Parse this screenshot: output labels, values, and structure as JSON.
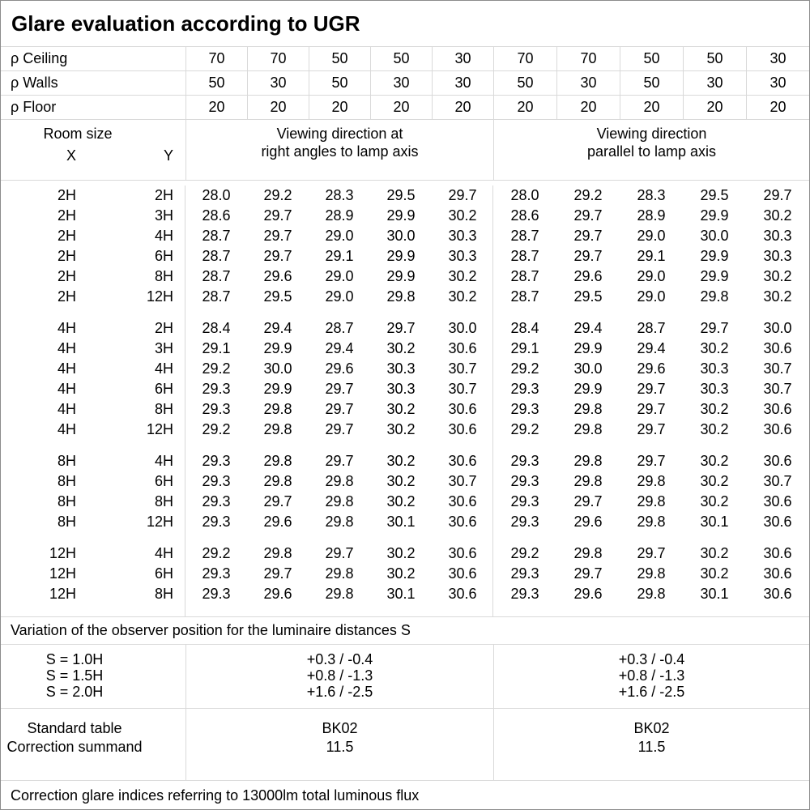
{
  "title": "Glare evaluation according to UGR",
  "reflectance_rows": [
    {
      "label": "ρ Ceiling",
      "values": [
        "70",
        "70",
        "50",
        "50",
        "30",
        "70",
        "70",
        "50",
        "50",
        "30"
      ]
    },
    {
      "label": "ρ Walls",
      "values": [
        "50",
        "30",
        "50",
        "30",
        "30",
        "50",
        "30",
        "50",
        "30",
        "30"
      ]
    },
    {
      "label": "ρ Floor",
      "values": [
        "20",
        "20",
        "20",
        "20",
        "20",
        "20",
        "20",
        "20",
        "20",
        "20"
      ]
    }
  ],
  "room_size_header": {
    "title": "Room size",
    "x_label": "X",
    "y_label": "Y"
  },
  "group_headers": [
    {
      "line1": "Viewing direction at",
      "line2": "right angles to lamp axis"
    },
    {
      "line1": "Viewing direction",
      "line2": "parallel to lamp axis"
    }
  ],
  "ugr_blocks": [
    {
      "rows": [
        {
          "x": "2H",
          "y": "2H",
          "right_angles": [
            "28.0",
            "29.2",
            "28.3",
            "29.5",
            "29.7"
          ],
          "parallel": [
            "28.0",
            "29.2",
            "28.3",
            "29.5",
            "29.7"
          ]
        },
        {
          "x": "2H",
          "y": "3H",
          "right_angles": [
            "28.6",
            "29.7",
            "28.9",
            "29.9",
            "30.2"
          ],
          "parallel": [
            "28.6",
            "29.7",
            "28.9",
            "29.9",
            "30.2"
          ]
        },
        {
          "x": "2H",
          "y": "4H",
          "right_angles": [
            "28.7",
            "29.7",
            "29.0",
            "30.0",
            "30.3"
          ],
          "parallel": [
            "28.7",
            "29.7",
            "29.0",
            "30.0",
            "30.3"
          ]
        },
        {
          "x": "2H",
          "y": "6H",
          "right_angles": [
            "28.7",
            "29.7",
            "29.1",
            "29.9",
            "30.3"
          ],
          "parallel": [
            "28.7",
            "29.7",
            "29.1",
            "29.9",
            "30.3"
          ]
        },
        {
          "x": "2H",
          "y": "8H",
          "right_angles": [
            "28.7",
            "29.6",
            "29.0",
            "29.9",
            "30.2"
          ],
          "parallel": [
            "28.7",
            "29.6",
            "29.0",
            "29.9",
            "30.2"
          ]
        },
        {
          "x": "2H",
          "y": "12H",
          "right_angles": [
            "28.7",
            "29.5",
            "29.0",
            "29.8",
            "30.2"
          ],
          "parallel": [
            "28.7",
            "29.5",
            "29.0",
            "29.8",
            "30.2"
          ]
        }
      ]
    },
    {
      "rows": [
        {
          "x": "4H",
          "y": "2H",
          "right_angles": [
            "28.4",
            "29.4",
            "28.7",
            "29.7",
            "30.0"
          ],
          "parallel": [
            "28.4",
            "29.4",
            "28.7",
            "29.7",
            "30.0"
          ]
        },
        {
          "x": "4H",
          "y": "3H",
          "right_angles": [
            "29.1",
            "29.9",
            "29.4",
            "30.2",
            "30.6"
          ],
          "parallel": [
            "29.1",
            "29.9",
            "29.4",
            "30.2",
            "30.6"
          ]
        },
        {
          "x": "4H",
          "y": "4H",
          "right_angles": [
            "29.2",
            "30.0",
            "29.6",
            "30.3",
            "30.7"
          ],
          "parallel": [
            "29.2",
            "30.0",
            "29.6",
            "30.3",
            "30.7"
          ]
        },
        {
          "x": "4H",
          "y": "6H",
          "right_angles": [
            "29.3",
            "29.9",
            "29.7",
            "30.3",
            "30.7"
          ],
          "parallel": [
            "29.3",
            "29.9",
            "29.7",
            "30.3",
            "30.7"
          ]
        },
        {
          "x": "4H",
          "y": "8H",
          "right_angles": [
            "29.3",
            "29.8",
            "29.7",
            "30.2",
            "30.6"
          ],
          "parallel": [
            "29.3",
            "29.8",
            "29.7",
            "30.2",
            "30.6"
          ]
        },
        {
          "x": "4H",
          "y": "12H",
          "right_angles": [
            "29.2",
            "29.8",
            "29.7",
            "30.2",
            "30.6"
          ],
          "parallel": [
            "29.2",
            "29.8",
            "29.7",
            "30.2",
            "30.6"
          ]
        }
      ]
    },
    {
      "rows": [
        {
          "x": "8H",
          "y": "4H",
          "right_angles": [
            "29.3",
            "29.8",
            "29.7",
            "30.2",
            "30.6"
          ],
          "parallel": [
            "29.3",
            "29.8",
            "29.7",
            "30.2",
            "30.6"
          ]
        },
        {
          "x": "8H",
          "y": "6H",
          "right_angles": [
            "29.3",
            "29.8",
            "29.8",
            "30.2",
            "30.7"
          ],
          "parallel": [
            "29.3",
            "29.8",
            "29.8",
            "30.2",
            "30.7"
          ]
        },
        {
          "x": "8H",
          "y": "8H",
          "right_angles": [
            "29.3",
            "29.7",
            "29.8",
            "30.2",
            "30.6"
          ],
          "parallel": [
            "29.3",
            "29.7",
            "29.8",
            "30.2",
            "30.6"
          ]
        },
        {
          "x": "8H",
          "y": "12H",
          "right_angles": [
            "29.3",
            "29.6",
            "29.8",
            "30.1",
            "30.6"
          ],
          "parallel": [
            "29.3",
            "29.6",
            "29.8",
            "30.1",
            "30.6"
          ]
        }
      ]
    },
    {
      "rows": [
        {
          "x": "12H",
          "y": "4H",
          "right_angles": [
            "29.2",
            "29.8",
            "29.7",
            "30.2",
            "30.6"
          ],
          "parallel": [
            "29.2",
            "29.8",
            "29.7",
            "30.2",
            "30.6"
          ]
        },
        {
          "x": "12H",
          "y": "6H",
          "right_angles": [
            "29.3",
            "29.7",
            "29.8",
            "30.2",
            "30.6"
          ],
          "parallel": [
            "29.3",
            "29.7",
            "29.8",
            "30.2",
            "30.6"
          ]
        },
        {
          "x": "12H",
          "y": "8H",
          "right_angles": [
            "29.3",
            "29.6",
            "29.8",
            "30.1",
            "30.6"
          ],
          "parallel": [
            "29.3",
            "29.6",
            "29.8",
            "30.1",
            "30.6"
          ]
        }
      ]
    }
  ],
  "variation_note": "Variation of the observer position for the luminaire distances S",
  "s_variation": {
    "labels": [
      "S = 1.0H",
      "S = 1.5H",
      "S = 2.0H"
    ],
    "right_angles": [
      "+0.3 / -0.4",
      "+0.8 / -1.3",
      "+1.6 / -2.5"
    ],
    "parallel": [
      "+0.3 / -0.4",
      "+0.8 / -1.3",
      "+1.6 / -2.5"
    ]
  },
  "standard": {
    "labels": [
      "Standard table",
      "Correction summand"
    ],
    "right_angles": [
      "BK02",
      "11.5"
    ],
    "parallel": [
      "BK02",
      "11.5"
    ]
  },
  "footer": "Correction glare indices referring to 13000lm total luminous flux"
}
